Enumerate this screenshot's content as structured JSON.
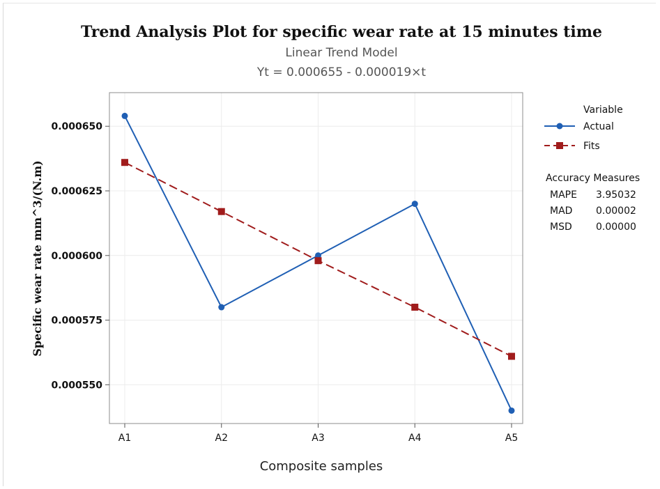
{
  "chart_data": {
    "type": "line",
    "title": "Trend Analysis Plot for  specific wear rate at 15 minutes time",
    "subtitle": "Linear Trend Model",
    "equation": "Yt = 0.000655 - 0.000019×t",
    "xlabel": "Composite samples",
    "ylabel": "Specific wear rate mm^3/(N.m)",
    "categories": [
      "A1",
      "A2",
      "A3",
      "A4",
      "A5"
    ],
    "yticks": [
      0.00055,
      0.000575,
      0.0006,
      0.000625,
      0.00065
    ],
    "ytick_labels": [
      "0.000550",
      "0.000575",
      "0.000600",
      "0.000625",
      "0.000650"
    ],
    "ylim": [
      0.000535,
      0.000663
    ],
    "grid": true,
    "legend_position": "right",
    "legend_title": "Variable",
    "series": [
      {
        "name": "Actual",
        "values": [
          0.000654,
          0.00058,
          0.0006,
          0.00062,
          0.00054
        ],
        "color": "#1f5fb4",
        "marker": "circle",
        "linestyle": "solid"
      },
      {
        "name": "Fits",
        "values": [
          0.000636,
          0.000617,
          0.000598,
          0.00058,
          0.000561
        ],
        "color": "#a01c1c",
        "marker": "square",
        "linestyle": "dashed"
      }
    ],
    "accuracy": {
      "title": "Accuracy Measures",
      "rows": [
        {
          "label": "MAPE",
          "value": "3.95032"
        },
        {
          "label": "MAD",
          "value": "0.00002"
        },
        {
          "label": "MSD",
          "value": "0.00000"
        }
      ]
    }
  }
}
